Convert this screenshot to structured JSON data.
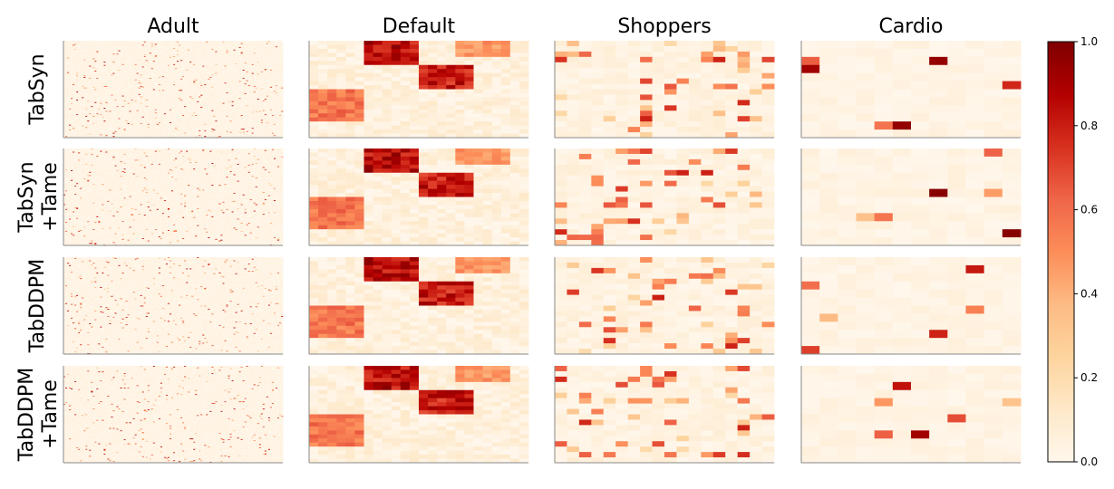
{
  "chart_data": {
    "type": "heatmap",
    "columns": [
      "Adult",
      "Default",
      "Shoppers",
      "Cardio"
    ],
    "rows": [
      {
        "lines": [
          "TabSyn"
        ]
      },
      {
        "lines": [
          "TabSyn",
          "+Tame"
        ]
      },
      {
        "lines": [
          "TabDDPM"
        ]
      },
      {
        "lines": [
          "TabDDPM",
          "+Tame"
        ]
      }
    ],
    "colorbar": {
      "colormap": "OrRd",
      "vmin": 0.0,
      "vmax": 1.0,
      "ticks": [
        "0.0",
        "0.2",
        "0.4",
        "0.6",
        "0.8",
        "1.0"
      ],
      "tick_values": [
        0.0,
        0.2,
        0.4,
        0.6,
        0.8,
        1.0
      ],
      "color_stops": [
        "#fff7ec",
        "#fee8c8",
        "#fdd49e",
        "#fdbb84",
        "#fc8d59",
        "#ef6548",
        "#d7301f",
        "#b30000",
        "#7f0000"
      ]
    },
    "grid": false,
    "legend": "colorbar-right"
  }
}
